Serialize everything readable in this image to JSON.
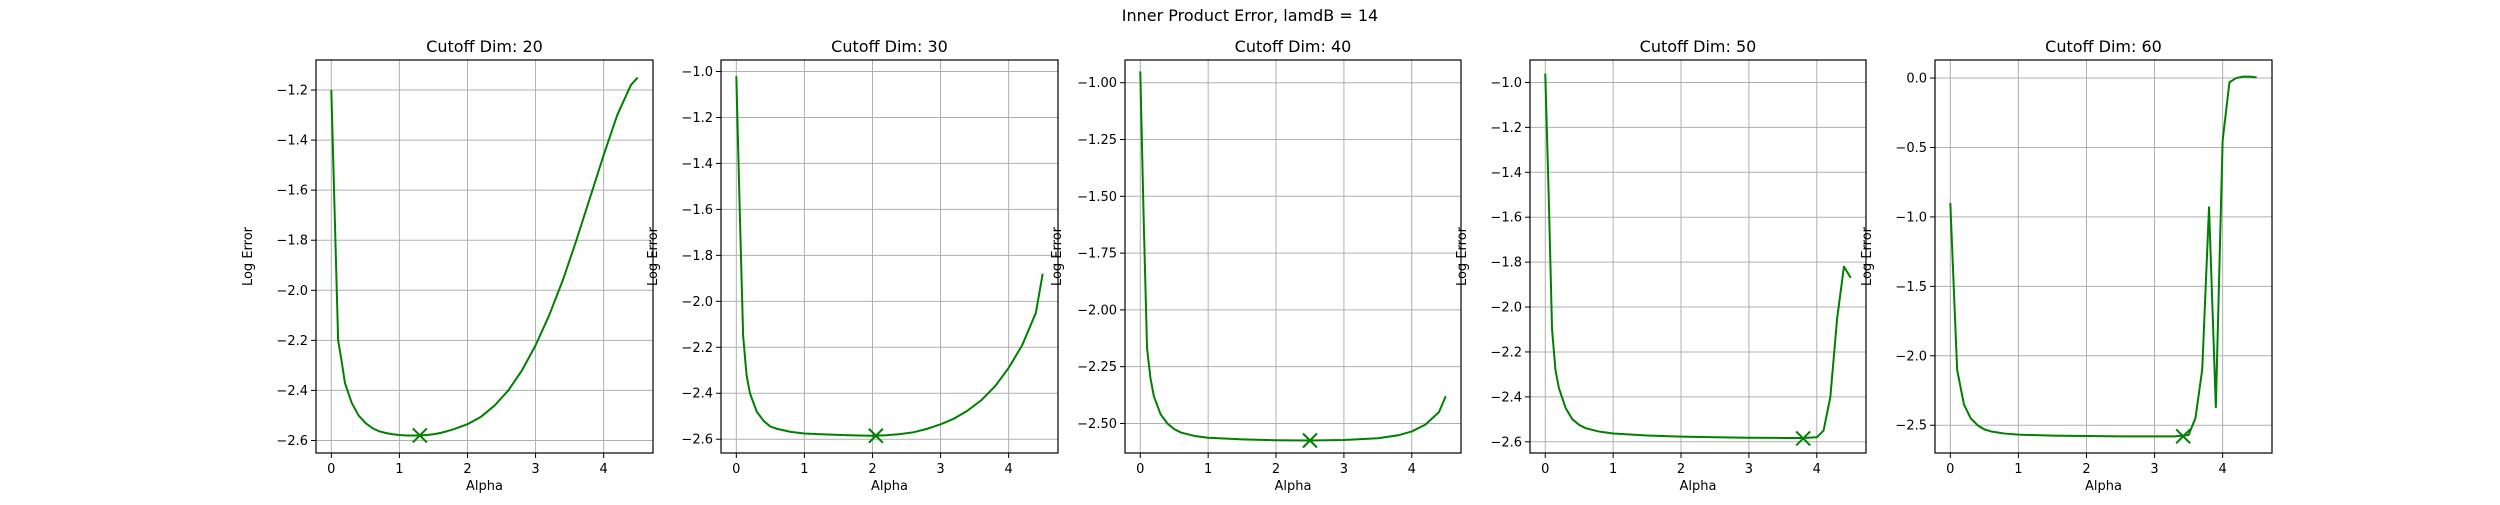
{
  "figure": {
    "suptitle": "Inner Product Error, lamdB = 14"
  },
  "colors": {
    "line": "#008000",
    "marker": "#008000",
    "grid": "#b0b0b0",
    "axes": "#000000"
  },
  "chart_data": [
    {
      "type": "line",
      "title": "Cutoff Dim: 20",
      "xlabel": "Alpha",
      "ylabel": "Log Error",
      "xlim": [
        -0.225,
        4.725
      ],
      "ylim": [
        -2.65,
        -1.08
      ],
      "xticks": [
        0,
        1,
        2,
        3,
        4
      ],
      "xtick_labels": [
        "0",
        "1",
        "2",
        "3",
        "4"
      ],
      "yticks": [
        -2.6,
        -2.4,
        -2.2,
        -2.0,
        -1.8,
        -1.6,
        -1.4,
        -1.2
      ],
      "ytick_labels": [
        "−2.6",
        "−2.4",
        "−2.2",
        "−2.0",
        "−1.8",
        "−1.6",
        "−1.4",
        "−1.2"
      ],
      "grid": true,
      "series": [
        {
          "x": [
            0.0,
            0.05,
            0.1,
            0.15,
            0.2,
            0.3,
            0.4,
            0.5,
            0.6,
            0.7,
            0.8,
            0.9,
            1.0,
            1.1,
            1.2,
            1.3,
            1.4,
            1.5,
            1.6,
            1.7,
            1.8,
            1.9,
            2.0,
            2.2,
            2.4,
            2.6,
            2.8,
            3.0,
            3.2,
            3.4,
            3.6,
            3.8,
            4.0,
            4.2,
            4.4,
            4.5
          ],
          "y": [
            -1.2,
            -1.7,
            -2.2,
            -2.28,
            -2.37,
            -2.45,
            -2.5,
            -2.53,
            -2.55,
            -2.563,
            -2.57,
            -2.575,
            -2.578,
            -2.58,
            -2.58,
            -2.58,
            -2.578,
            -2.575,
            -2.57,
            -2.563,
            -2.555,
            -2.545,
            -2.535,
            -2.505,
            -2.46,
            -2.4,
            -2.32,
            -2.22,
            -2.1,
            -1.96,
            -1.8,
            -1.63,
            -1.46,
            -1.3,
            -1.18,
            -1.15
          ]
        }
      ],
      "minimum": {
        "x": 1.3,
        "y": -2.58
      }
    },
    {
      "type": "line",
      "title": "Cutoff Dim: 30",
      "xlabel": "Alpha",
      "ylabel": "Log Error",
      "xlim": [
        -0.225,
        4.725
      ],
      "ylim": [
        -2.66,
        -0.95
      ],
      "xticks": [
        0,
        1,
        2,
        3,
        4
      ],
      "xtick_labels": [
        "0",
        "1",
        "2",
        "3",
        "4"
      ],
      "yticks": [
        -2.6,
        -2.4,
        -2.2,
        -2.0,
        -1.8,
        -1.6,
        -1.4,
        -1.2,
        -1.0
      ],
      "ytick_labels": [
        "−2.6",
        "−2.4",
        "−2.2",
        "−2.0",
        "−1.8",
        "−1.6",
        "−1.4",
        "−1.2",
        "−1.0"
      ],
      "grid": true,
      "series": [
        {
          "x": [
            0.0,
            0.05,
            0.1,
            0.15,
            0.2,
            0.3,
            0.4,
            0.5,
            0.6,
            0.8,
            1.0,
            1.2,
            1.4,
            1.6,
            1.8,
            2.0,
            2.2,
            2.4,
            2.6,
            2.8,
            3.0,
            3.2,
            3.4,
            3.6,
            3.8,
            4.0,
            4.2,
            4.4,
            4.5
          ],
          "y": [
            -1.02,
            -1.6,
            -2.15,
            -2.32,
            -2.4,
            -2.48,
            -2.52,
            -2.545,
            -2.555,
            -2.568,
            -2.575,
            -2.578,
            -2.58,
            -2.582,
            -2.584,
            -2.585,
            -2.583,
            -2.578,
            -2.57,
            -2.555,
            -2.535,
            -2.51,
            -2.475,
            -2.43,
            -2.37,
            -2.29,
            -2.19,
            -2.05,
            -1.88
          ]
        }
      ],
      "minimum": {
        "x": 2.05,
        "y": -2.585
      }
    },
    {
      "type": "line",
      "title": "Cutoff Dim: 40",
      "xlabel": "Alpha",
      "ylabel": "Log Error",
      "xlim": [
        -0.225,
        4.725
      ],
      "ylim": [
        -2.63,
        -0.9
      ],
      "xticks": [
        0,
        1,
        2,
        3,
        4
      ],
      "xtick_labels": [
        "0",
        "1",
        "2",
        "3",
        "4"
      ],
      "yticks": [
        -2.5,
        -2.25,
        -2.0,
        -1.75,
        -1.5,
        -1.25,
        -1.0
      ],
      "ytick_labels": [
        "−2.50",
        "−2.25",
        "−2.00",
        "−1.75",
        "−1.50",
        "−1.25",
        "−1.00"
      ],
      "grid": true,
      "series": [
        {
          "x": [
            0.0,
            0.05,
            0.1,
            0.15,
            0.2,
            0.3,
            0.4,
            0.5,
            0.6,
            0.8,
            1.0,
            1.5,
            2.0,
            2.5,
            3.0,
            3.5,
            3.8,
            4.0,
            4.2,
            4.4,
            4.5
          ],
          "y": [
            -0.95,
            -1.6,
            -2.17,
            -2.3,
            -2.38,
            -2.46,
            -2.5,
            -2.525,
            -2.54,
            -2.555,
            -2.563,
            -2.57,
            -2.574,
            -2.575,
            -2.573,
            -2.565,
            -2.552,
            -2.535,
            -2.505,
            -2.45,
            -2.38
          ]
        }
      ],
      "minimum": {
        "x": 2.5,
        "y": -2.575
      }
    },
    {
      "type": "line",
      "title": "Cutoff Dim: 50",
      "xlabel": "Alpha",
      "ylabel": "Log Error",
      "xlim": [
        -0.225,
        4.725
      ],
      "ylim": [
        -2.65,
        -0.9
      ],
      "xticks": [
        0,
        1,
        2,
        3,
        4
      ],
      "xtick_labels": [
        "0",
        "1",
        "2",
        "3",
        "4"
      ],
      "yticks": [
        -2.6,
        -2.4,
        -2.2,
        -2.0,
        -1.8,
        -1.6,
        -1.4,
        -1.2,
        -1.0
      ],
      "ytick_labels": [
        "−2.6",
        "−2.4",
        "−2.2",
        "−2.0",
        "−1.8",
        "−1.6",
        "−1.4",
        "−1.2",
        "−1.0"
      ],
      "grid": true,
      "series": [
        {
          "x": [
            0.0,
            0.05,
            0.1,
            0.15,
            0.2,
            0.3,
            0.4,
            0.5,
            0.6,
            0.8,
            1.0,
            1.5,
            2.0,
            2.5,
            3.0,
            3.5,
            3.8,
            4.0,
            4.1,
            4.2,
            4.3,
            4.4,
            4.5
          ],
          "y": [
            -0.96,
            -1.5,
            -2.1,
            -2.28,
            -2.36,
            -2.45,
            -2.5,
            -2.525,
            -2.54,
            -2.555,
            -2.563,
            -2.572,
            -2.577,
            -2.58,
            -2.582,
            -2.583,
            -2.583,
            -2.58,
            -2.55,
            -2.4,
            -2.05,
            -1.82,
            -1.87
          ]
        }
      ],
      "minimum": {
        "x": 3.8,
        "y": -2.585
      }
    },
    {
      "type": "line",
      "title": "Cutoff Dim: 60",
      "xlabel": "Alpha",
      "ylabel": "Log Error",
      "xlim": [
        -0.225,
        4.725
      ],
      "ylim": [
        -2.7,
        0.13
      ],
      "xticks": [
        0,
        1,
        2,
        3,
        4
      ],
      "xtick_labels": [
        "0",
        "1",
        "2",
        "3",
        "4"
      ],
      "yticks": [
        -2.5,
        -2.0,
        -1.5,
        -1.0,
        -0.5,
        0.0
      ],
      "ytick_labels": [
        "−2.5",
        "−2.0",
        "−1.5",
        "−1.0",
        "−0.5",
        "0.0"
      ],
      "grid": true,
      "series": [
        {
          "x": [
            0.0,
            0.1,
            0.2,
            0.3,
            0.4,
            0.5,
            0.6,
            0.8,
            1.0,
            1.5,
            2.0,
            2.5,
            3.0,
            3.3,
            3.5,
            3.6,
            3.7,
            3.8,
            3.9,
            4.0,
            4.1,
            4.2,
            4.3,
            4.4,
            4.5
          ],
          "y": [
            -0.9,
            -2.1,
            -2.35,
            -2.45,
            -2.5,
            -2.53,
            -2.545,
            -2.56,
            -2.568,
            -2.575,
            -2.578,
            -2.58,
            -2.58,
            -2.58,
            -2.57,
            -2.45,
            -2.1,
            -0.93,
            -2.37,
            -0.45,
            -0.03,
            0.0,
            0.01,
            0.01,
            0.005
          ]
        }
      ],
      "minimum": {
        "x": 3.42,
        "y": -2.58
      }
    }
  ]
}
